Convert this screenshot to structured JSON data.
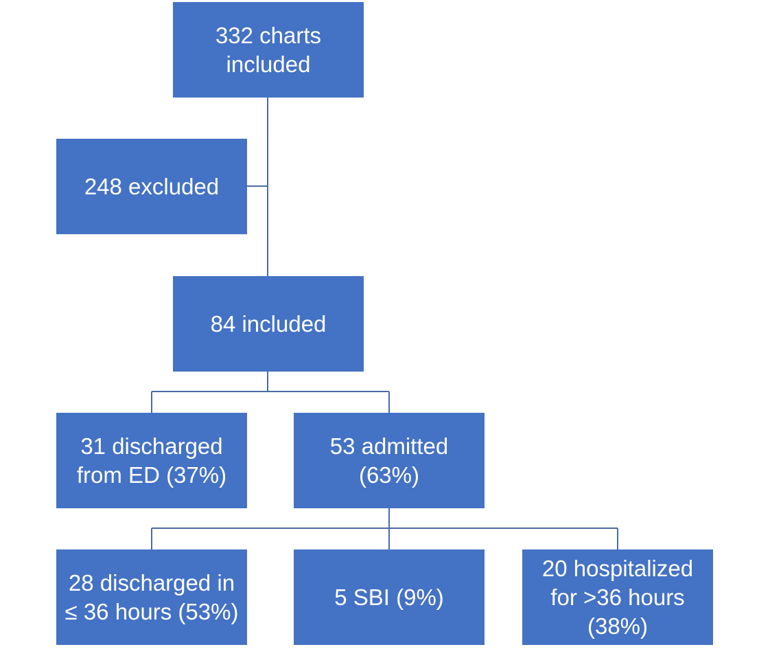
{
  "flowchart": {
    "nodes": {
      "charts_included": "332 charts\nincluded",
      "excluded": "248 excluded",
      "included": "84 included",
      "discharged_from_ed": "31 discharged\nfrom ED (37%)",
      "admitted": "53 admitted\n(63%)",
      "discharged_36h": "28 discharged in\n≤ 36 hours (53%)",
      "sbi": "5 SBI (9%)",
      "hospitalized_36h": "20 hospitalized\nfor >36 hours\n(38%)"
    },
    "colors": {
      "box_fill": "#4472c4",
      "box_text": "#ffffff",
      "connector": "#4a6ba0"
    }
  }
}
